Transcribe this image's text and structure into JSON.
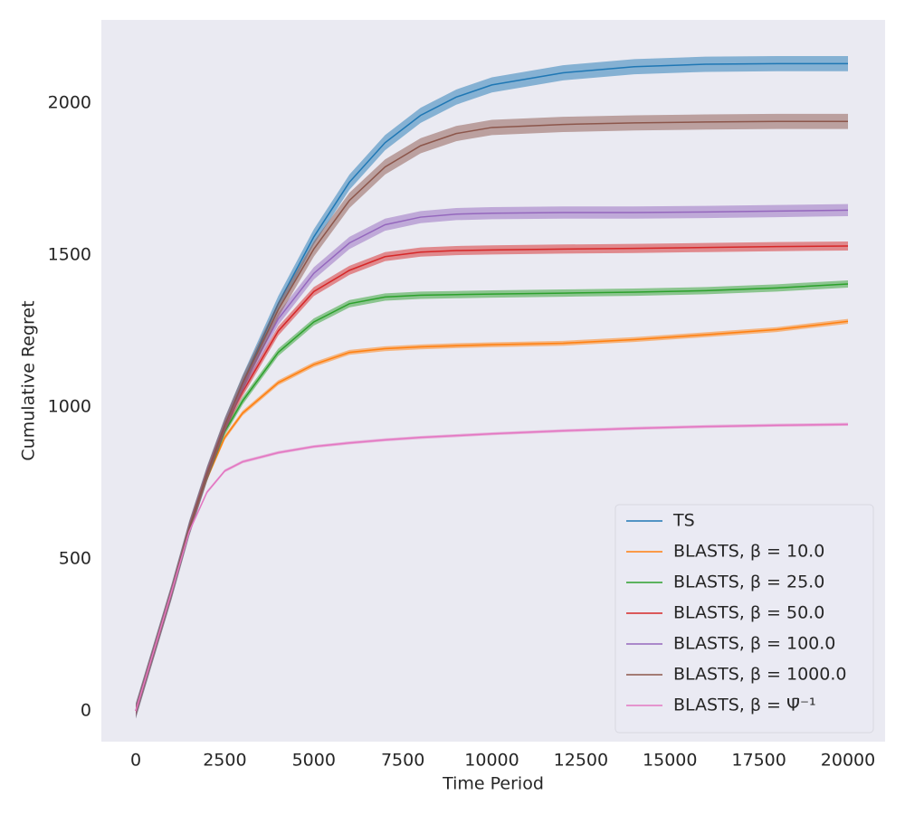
{
  "chart_data": {
    "type": "line",
    "x_label": "Time Period",
    "y_label": "Cumulative Regret",
    "x": [
      0,
      1000,
      1500,
      2000,
      2500,
      3000,
      4000,
      5000,
      6000,
      7000,
      8000,
      9000,
      10000,
      12000,
      14000,
      16000,
      18000,
      20000
    ],
    "series": [
      {
        "name": "TS",
        "color": "#1f77b4",
        "error": 25,
        "values": [
          0,
          390,
          600,
          780,
          940,
          1080,
          1340,
          1560,
          1740,
          1870,
          1960,
          2020,
          2060,
          2100,
          2120,
          2128,
          2130,
          2130
        ]
      },
      {
        "name": "BLASTS, β = 10.0",
        "color": "#ff7f0e",
        "error": 8,
        "values": [
          0,
          390,
          600,
          765,
          900,
          980,
          1080,
          1140,
          1180,
          1192,
          1198,
          1202,
          1205,
          1210,
          1222,
          1238,
          1255,
          1282
        ]
      },
      {
        "name": "BLASTS, β = 25.0",
        "color": "#2ca02c",
        "error": 12,
        "values": [
          0,
          390,
          600,
          770,
          920,
          1020,
          1180,
          1280,
          1340,
          1362,
          1368,
          1370,
          1372,
          1375,
          1378,
          1383,
          1392,
          1405
        ]
      },
      {
        "name": "BLASTS, β = 50.0",
        "color": "#d62728",
        "error": 15,
        "values": [
          0,
          390,
          600,
          780,
          935,
          1050,
          1250,
          1380,
          1450,
          1495,
          1510,
          1515,
          1517,
          1520,
          1522,
          1525,
          1528,
          1530
        ]
      },
      {
        "name": "BLASTS, β = 100.0",
        "color": "#9467bd",
        "error": 20,
        "values": [
          0,
          390,
          600,
          780,
          938,
          1070,
          1290,
          1440,
          1540,
          1600,
          1625,
          1635,
          1638,
          1640,
          1640,
          1642,
          1645,
          1648
        ]
      },
      {
        "name": "BLASTS, β = 1000.0",
        "color": "#8c564b",
        "error": 25,
        "values": [
          0,
          390,
          600,
          780,
          940,
          1078,
          1320,
          1520,
          1680,
          1790,
          1860,
          1900,
          1920,
          1930,
          1935,
          1938,
          1940,
          1940
        ]
      },
      {
        "name": "BLASTS, β = Ψ̄⁻¹",
        "color": "#e377c2",
        "error": 5,
        "values": [
          0,
          390,
          590,
          720,
          790,
          820,
          850,
          870,
          882,
          892,
          900,
          906,
          912,
          922,
          930,
          936,
          940,
          943
        ]
      }
    ],
    "xlim": [
      -966,
      21042
    ],
    "ylim": [
      -101,
      2274
    ],
    "xticks": [
      0,
      2500,
      5000,
      7500,
      10000,
      12500,
      15000,
      17500,
      20000
    ],
    "yticks": [
      0,
      500,
      1000,
      1500,
      2000
    ],
    "grid": false,
    "legend": "lower right"
  }
}
